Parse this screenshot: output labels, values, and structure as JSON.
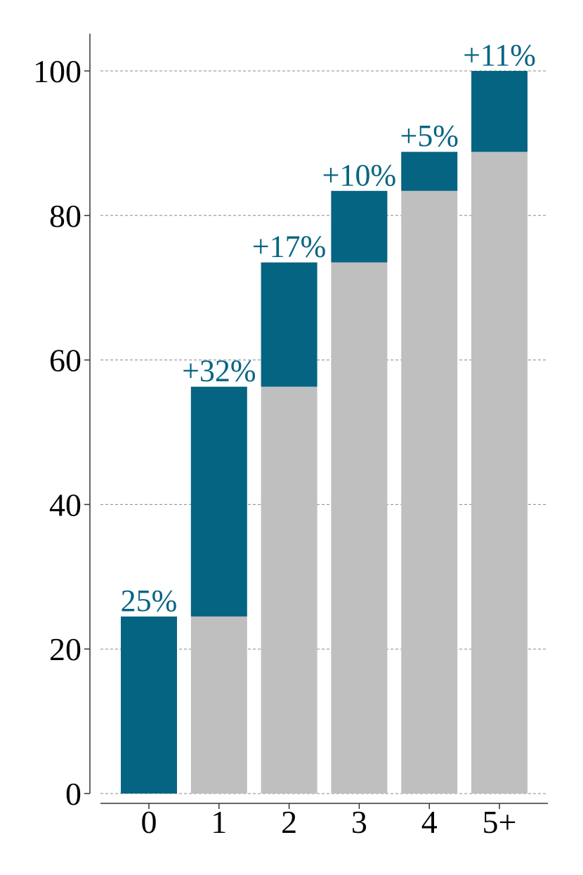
{
  "colors": {
    "increment": "#056482",
    "base": "#bfbfbf",
    "label": "#056482",
    "grid": "#888888",
    "axis": "#333333"
  },
  "chart_data": {
    "type": "bar",
    "stacked": true,
    "title": "",
    "xlabel": "",
    "ylabel": "",
    "categories": [
      "0",
      "1",
      "2",
      "3",
      "4",
      "5+"
    ],
    "series": [
      {
        "name": "",
        "color": "#bfbfbf",
        "values": [
          0,
          24.5,
          56.3,
          73.5,
          83.4,
          88.8
        ]
      },
      {
        "name": "",
        "color": "#056482",
        "values": [
          24.5,
          31.8,
          17.2,
          9.9,
          5.4,
          11.2
        ]
      }
    ],
    "totals": [
      24.5,
      56.3,
      73.5,
      83.4,
      88.8,
      100
    ],
    "data_labels": [
      "25%",
      "+32%",
      "+17%",
      "+10%",
      "+5%",
      "+11%"
    ],
    "ylim": [
      0,
      105
    ],
    "yticks": [
      0,
      20,
      40,
      60,
      80,
      100
    ],
    "grid": "horizontal dashed"
  }
}
